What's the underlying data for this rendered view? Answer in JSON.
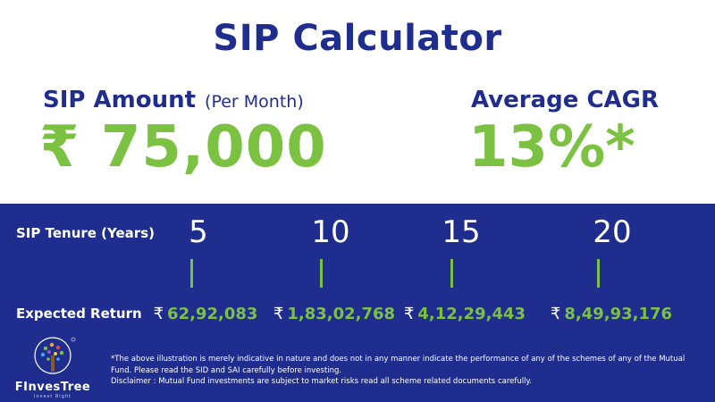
{
  "title": "SIP Calculator",
  "sip": {
    "label": "SIP Amount",
    "sublabel": "(Per Month)",
    "value": "₹ 75,000"
  },
  "cagr": {
    "label": "Average CAGR",
    "value": "13%*"
  },
  "table": {
    "tenure_label": "SIP Tenure (Years)",
    "return_label": "Expected Return",
    "currency_symbol": "₹",
    "columns": [
      {
        "years": "5",
        "return": "62,92,083"
      },
      {
        "years": "10",
        "return": "1,83,02,768"
      },
      {
        "years": "15",
        "return": "4,12,29,443"
      },
      {
        "years": "20",
        "return": "8,49,93,176"
      }
    ]
  },
  "brand": {
    "name": "FInvesTree",
    "tagline": "Invest Right"
  },
  "disclaimer": {
    "line1": "*The above illustration is merely indicative in nature and does not in any manner indicate the performance of any of the schemes of any of the Mutual Fund. Please read the SID and SAI carefully before investing.",
    "line2": "Disclaimer : Mutual Fund investments are subject to market risks read all scheme related documents carefully."
  },
  "colors": {
    "navy": "#1f2d8f",
    "green": "#7cc242",
    "white": "#ffffff"
  }
}
